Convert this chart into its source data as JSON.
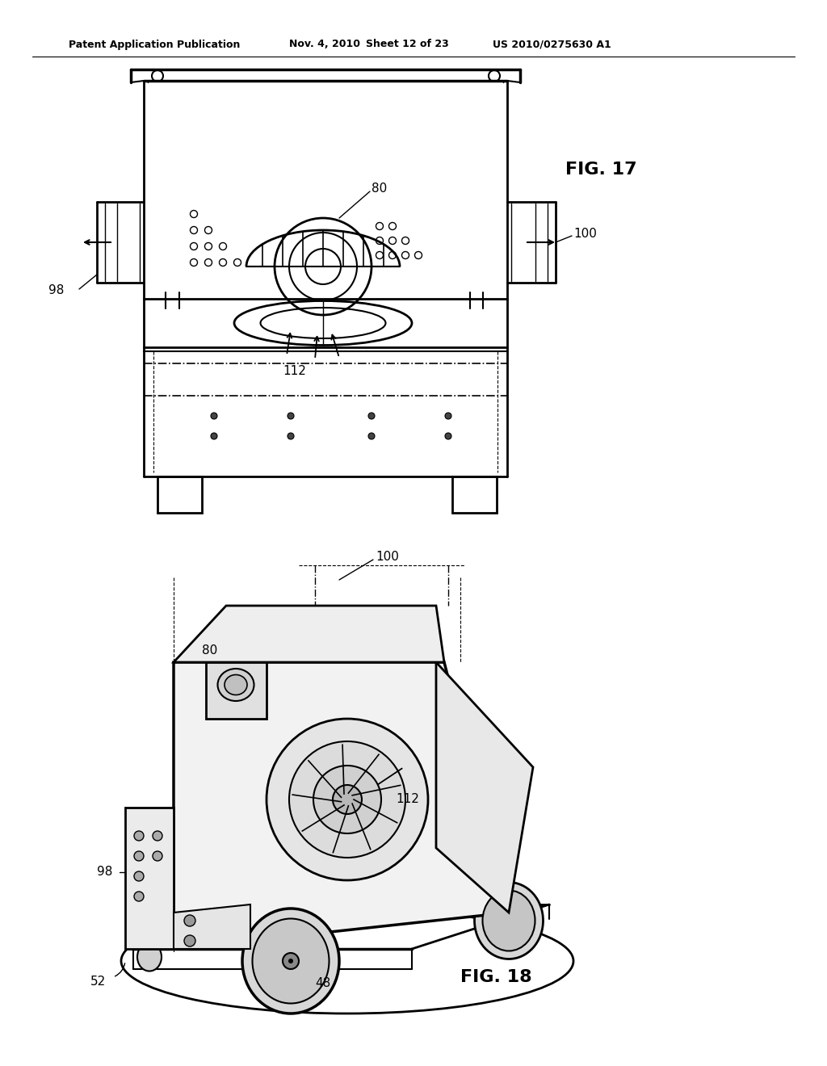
{
  "bg_color": "#ffffff",
  "header_text": "Patent Application Publication",
  "header_date": "Nov. 4, 2010",
  "header_sheet": "Sheet 12 of 23",
  "header_patent": "US 2010/0275630 A1",
  "fig17_label": "FIG. 17",
  "fig18_label": "FIG. 18",
  "labels": {
    "80_fig17": "80",
    "100_fig17": "100",
    "98_fig17": "98",
    "112_fig17": "112",
    "80_fig18": "80",
    "100_fig18": "100",
    "98_fig18": "98",
    "112_fig18": "112",
    "48_fig18": "48",
    "52_fig18": "52"
  },
  "line_color": "#000000",
  "text_color": "#000000"
}
